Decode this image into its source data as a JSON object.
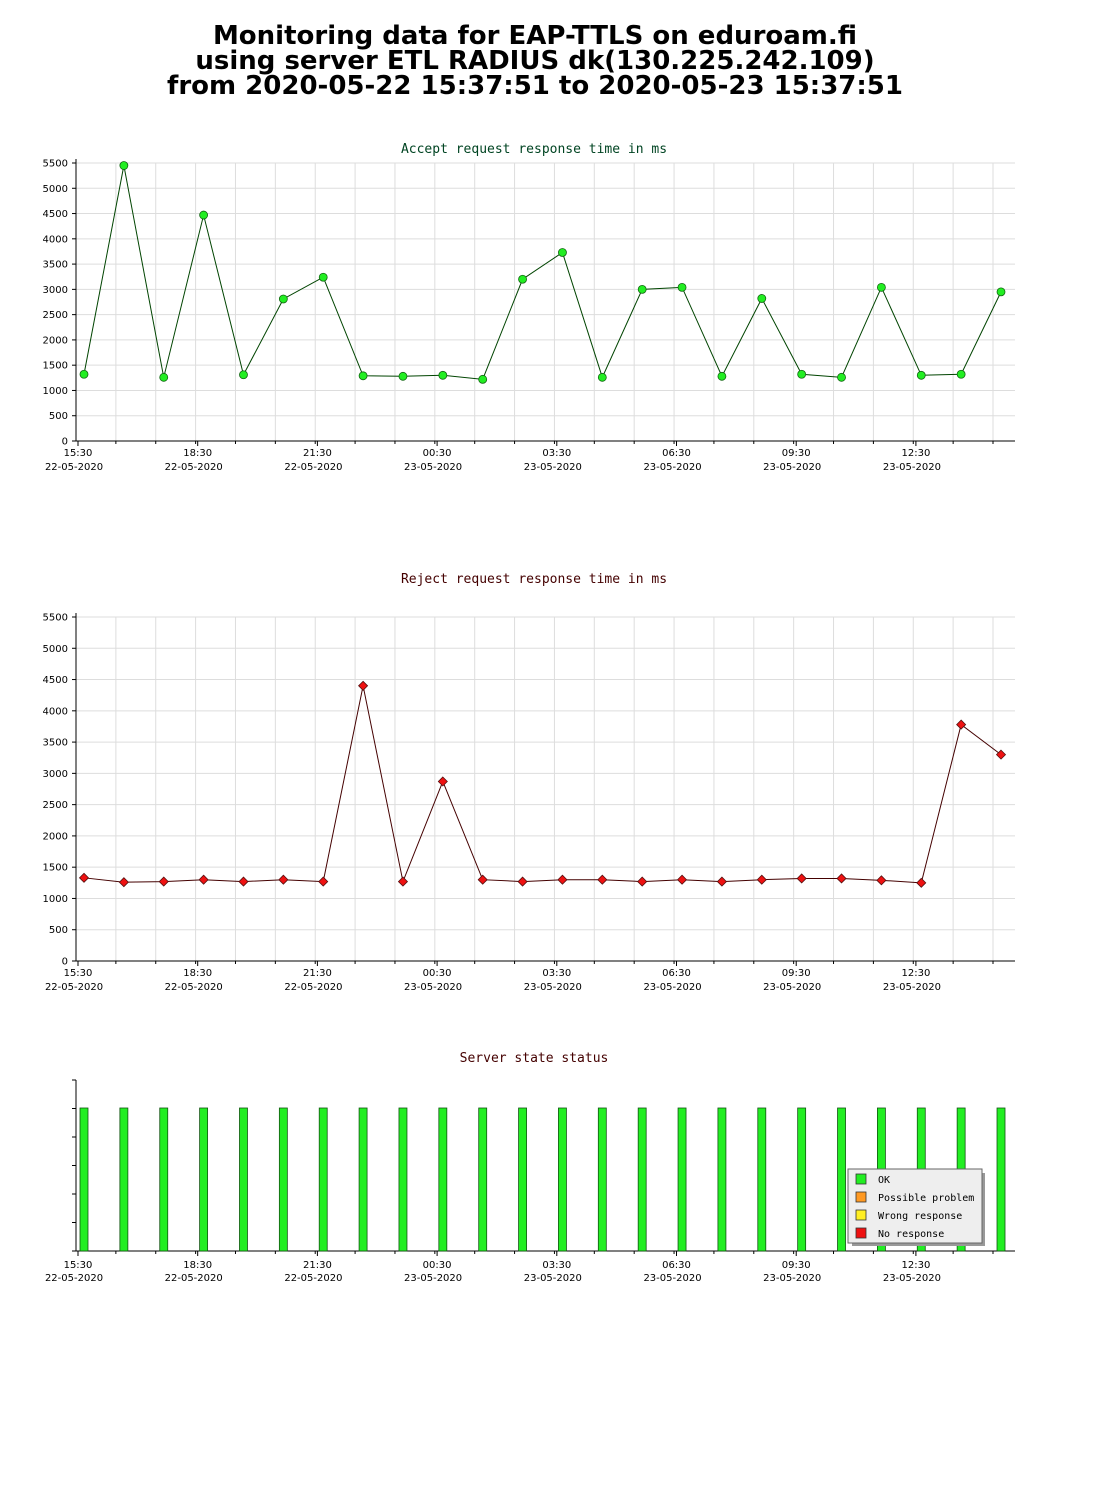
{
  "page_title": {
    "line1": "Monitoring data for EAP-TTLS on eduroam.fi",
    "line2": "using server ETL RADIUS dk(130.225.242.109)",
    "line3": "from 2020-05-22 15:37:51 to 2020-05-23 15:37:51"
  },
  "colors": {
    "accept_marker": "#22ee22",
    "accept_line": "#004400",
    "accept_title": "#004422",
    "reject_marker": "#ee1111",
    "reject_line": "#440000",
    "reject_title": "#440000",
    "status_title": "#440000",
    "grid": "#dddddd",
    "ok": "#22ee22",
    "possible_problem": "#ff9922",
    "wrong_response": "#ffee22",
    "no_response": "#ee1111"
  },
  "chart_data": [
    {
      "type": "line",
      "title": "Accept request response time in ms",
      "ylim": [
        0,
        5500
      ],
      "yticks": [
        0,
        500,
        1000,
        1500,
        2000,
        2500,
        3000,
        3500,
        4000,
        4500,
        5000,
        5500
      ],
      "xticks": [
        {
          "time": "15:30",
          "date": "22-05-2020"
        },
        {
          "time": "18:30",
          "date": "22-05-2020"
        },
        {
          "time": "21:30",
          "date": "22-05-2020"
        },
        {
          "time": "00:30",
          "date": "23-05-2020"
        },
        {
          "time": "03:30",
          "date": "23-05-2020"
        },
        {
          "time": "06:30",
          "date": "23-05-2020"
        },
        {
          "time": "09:30",
          "date": "23-05-2020"
        },
        {
          "time": "12:30",
          "date": "23-05-2020"
        }
      ],
      "grid": true,
      "values": [
        1320,
        5450,
        1260,
        4470,
        1310,
        2810,
        3240,
        1290,
        1280,
        1300,
        1220,
        3200,
        3730,
        1260,
        3000,
        3040,
        1280,
        2820,
        1320,
        1260,
        3040,
        1300,
        1320,
        2950
      ]
    },
    {
      "type": "line",
      "title": "Reject request response time in ms",
      "ylim": [
        0,
        5500
      ],
      "yticks": [
        0,
        500,
        1000,
        1500,
        2000,
        2500,
        3000,
        3500,
        4000,
        4500,
        5000,
        5500
      ],
      "xticks": [
        {
          "time": "15:30",
          "date": "22-05-2020"
        },
        {
          "time": "18:30",
          "date": "22-05-2020"
        },
        {
          "time": "21:30",
          "date": "22-05-2020"
        },
        {
          "time": "00:30",
          "date": "23-05-2020"
        },
        {
          "time": "03:30",
          "date": "23-05-2020"
        },
        {
          "time": "06:30",
          "date": "23-05-2020"
        },
        {
          "time": "09:30",
          "date": "23-05-2020"
        },
        {
          "time": "12:30",
          "date": "23-05-2020"
        }
      ],
      "grid": true,
      "values": [
        1330,
        1260,
        1270,
        1300,
        1270,
        1300,
        1270,
        4400,
        1270,
        2870,
        1300,
        1270,
        1300,
        1300,
        1270,
        1300,
        1270,
        1300,
        1320,
        1320,
        1290,
        1250,
        3780,
        3300
      ]
    },
    {
      "type": "bar",
      "title": "Server state status",
      "xticks": [
        {
          "time": "15:30",
          "date": "22-05-2020"
        },
        {
          "time": "18:30",
          "date": "22-05-2020"
        },
        {
          "time": "21:30",
          "date": "22-05-2020"
        },
        {
          "time": "00:30",
          "date": "23-05-2020"
        },
        {
          "time": "03:30",
          "date": "23-05-2020"
        },
        {
          "time": "06:30",
          "date": "23-05-2020"
        },
        {
          "time": "09:30",
          "date": "23-05-2020"
        },
        {
          "time": "12:30",
          "date": "23-05-2020"
        }
      ],
      "states": [
        "OK",
        "OK",
        "OK",
        "OK",
        "OK",
        "OK",
        "OK",
        "OK",
        "OK",
        "OK",
        "OK",
        "OK",
        "OK",
        "OK",
        "OK",
        "OK",
        "OK",
        "OK",
        "OK",
        "OK",
        "OK",
        "OK",
        "OK",
        "OK"
      ],
      "legend_position": "bottom-right",
      "legend": [
        {
          "label": "OK",
          "color": "#22ee22"
        },
        {
          "label": "Possible problem",
          "color": "#ff9922"
        },
        {
          "label": "Wrong response",
          "color": "#ffee22"
        },
        {
          "label": "No response",
          "color": "#ee1111"
        }
      ]
    }
  ]
}
